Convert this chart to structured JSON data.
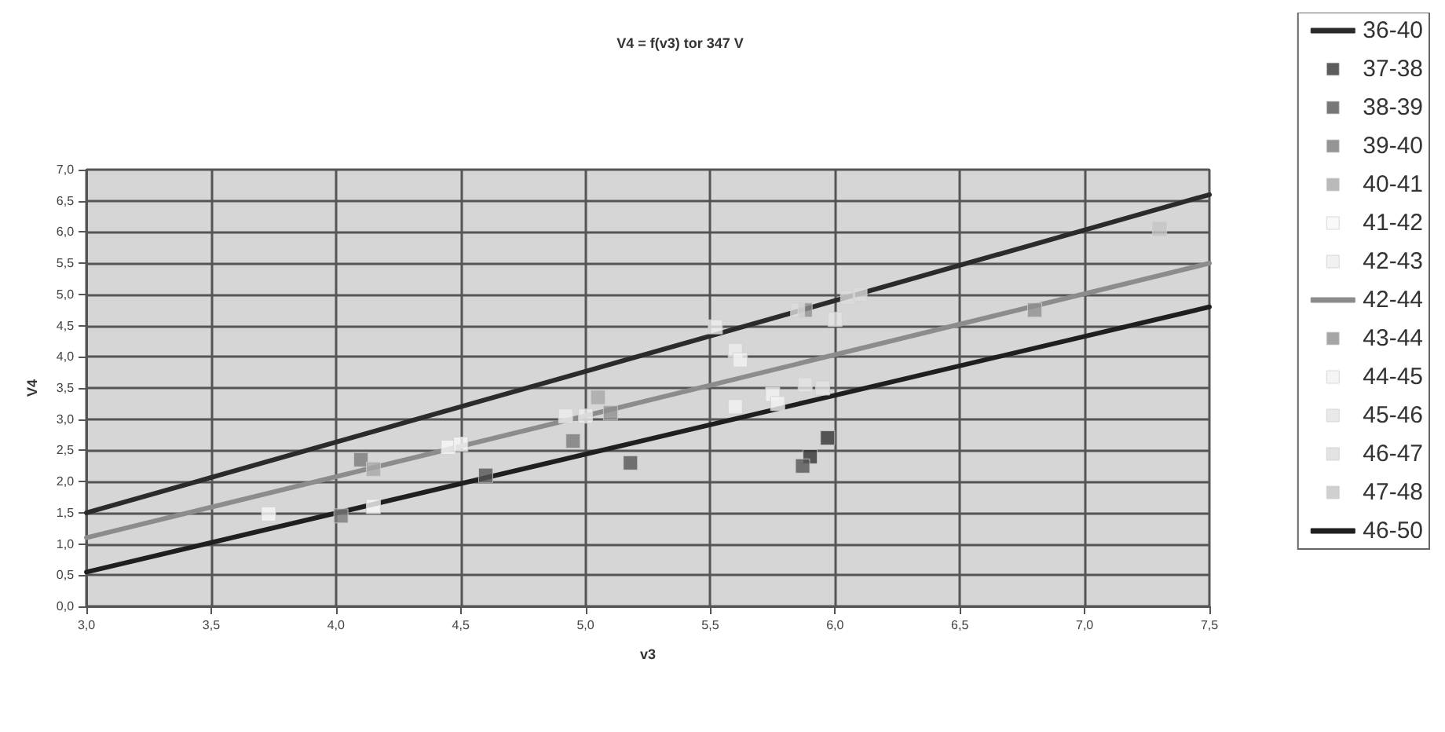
{
  "chart_data": {
    "type": "scatter",
    "title": "V4 = f(v3) tor 347 V",
    "xlabel": "v3",
    "ylabel": "V4",
    "xlim": [
      3.0,
      7.5
    ],
    "xticks": [
      {
        "value": 3.0,
        "label": "3,0"
      },
      {
        "value": 3.5,
        "label": "3,5"
      },
      {
        "value": 4.0,
        "label": "4,0"
      },
      {
        "value": 4.5,
        "label": "4,5"
      },
      {
        "value": 5.0,
        "label": "5,0"
      },
      {
        "value": 5.5,
        "label": "5,5"
      },
      {
        "value": 6.0,
        "label": "6,0"
      },
      {
        "value": 6.5,
        "label": "6,5"
      },
      {
        "value": 7.0,
        "label": "7,0"
      },
      {
        "value": 7.5,
        "label": "7,5"
      }
    ],
    "ylim": [
      0,
      7.0
    ],
    "yticks": [
      {
        "value": 0,
        "label": "0,0"
      },
      {
        "value": 0.5,
        "label": "0,5"
      },
      {
        "value": 1.0,
        "label": "1,0"
      },
      {
        "value": 1.5,
        "label": "1,5"
      },
      {
        "value": 2.0,
        "label": "2,0"
      },
      {
        "value": 2.5,
        "label": "2,5"
      },
      {
        "value": 3.0,
        "label": "3,0"
      },
      {
        "value": 3.5,
        "label": "3,5"
      },
      {
        "value": 4.0,
        "label": "4,0"
      },
      {
        "value": 4.5,
        "label": "4,5"
      },
      {
        "value": 5.0,
        "label": "5,0"
      },
      {
        "value": 5.5,
        "label": "5,5"
      },
      {
        "value": 6.0,
        "label": "6,0"
      },
      {
        "value": 6.5,
        "label": "6,5"
      },
      {
        "value": 7.0,
        "label": "7,0"
      }
    ],
    "grid": true,
    "legend": "right",
    "series": [
      {
        "name": "36-40",
        "type": "line",
        "marker": "none",
        "color": "#2b2b2b",
        "x": [
          3.0,
          7.5
        ],
        "values": [
          1.5,
          6.6
        ]
      },
      {
        "name": "37-38",
        "marker": "square",
        "color": "#333333",
        "x": [
          5.97,
          5.9
        ],
        "values": [
          2.7,
          2.4
        ]
      },
      {
        "name": "38-39",
        "marker": "square",
        "color": "#555555",
        "x": [
          4.6,
          5.18,
          5.87
        ],
        "values": [
          2.1,
          2.3,
          2.25
        ]
      },
      {
        "name": "39-40",
        "marker": "square",
        "color": "#7a7a7a",
        "x": [
          4.02,
          4.1,
          4.95
        ],
        "values": [
          1.45,
          2.35,
          2.65
        ]
      },
      {
        "name": "40-41",
        "marker": "square",
        "color": "#a8a8a8",
        "x": [
          4.15,
          5.05
        ],
        "values": [
          2.2,
          3.35
        ]
      },
      {
        "name": "41-42",
        "marker": "square",
        "color": "#f7f7f7",
        "x": [
          3.73,
          4.15,
          4.45,
          4.5
        ],
        "values": [
          1.48,
          1.6,
          2.55,
          2.6
        ]
      },
      {
        "name": "42-43",
        "marker": "square",
        "color": "#eeeeee",
        "x": [
          4.92,
          5.0,
          5.52,
          5.6
        ],
        "values": [
          3.05,
          3.05,
          4.48,
          4.1
        ]
      },
      {
        "name": "42-44",
        "type": "line",
        "marker": "none",
        "color": "#8c8c8c",
        "x": [
          3.0,
          7.5
        ],
        "values": [
          1.1,
          5.5
        ]
      },
      {
        "name": "43-44",
        "marker": "square",
        "color": "#909090",
        "x": [
          5.1,
          5.88,
          6.8
        ],
        "values": [
          3.1,
          4.75,
          4.75
        ]
      },
      {
        "name": "44-45",
        "marker": "square",
        "color": "#f2f2f2",
        "x": [
          5.6,
          5.62,
          5.75,
          5.77
        ],
        "values": [
          3.2,
          3.95,
          3.4,
          3.25
        ]
      },
      {
        "name": "45-46",
        "marker": "square",
        "color": "#e4e4e4",
        "x": [
          5.88,
          5.95,
          6.0
        ],
        "values": [
          3.55,
          3.5,
          4.6
        ]
      },
      {
        "name": "46-47",
        "marker": "square",
        "color": "#dcdcdc",
        "x": [
          5.85,
          6.05,
          6.1
        ],
        "values": [
          4.75,
          4.95,
          5.0
        ]
      },
      {
        "name": "47-48",
        "marker": "square",
        "color": "#c4c4c4",
        "x": [
          7.3
        ],
        "values": [
          6.05
        ]
      },
      {
        "name": "46-50",
        "type": "line",
        "marker": "none",
        "color": "#1f1f1f",
        "x": [
          3.0,
          7.5
        ],
        "values": [
          0.55,
          4.8
        ]
      }
    ]
  }
}
